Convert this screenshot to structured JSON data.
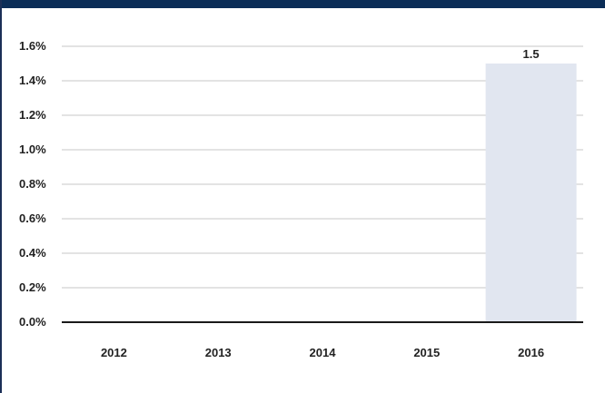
{
  "theme": {
    "header_color": "#0b2d57",
    "border_color": "#1b2f57",
    "bar_color": "#e1e6f0",
    "grid_color": "#c7c7c7",
    "axis_color": "#1a1a1a"
  },
  "chart_data": {
    "type": "bar",
    "title": "",
    "xlabel": "",
    "ylabel": "",
    "categories": [
      "2012",
      "2013",
      "2014",
      "2015",
      "2016"
    ],
    "values": [
      0,
      0,
      0,
      0,
      1.5
    ],
    "data_labels": [
      "",
      "",
      "",
      "",
      "1.5"
    ],
    "ylim": [
      0,
      1.6
    ],
    "y_ticks": [
      0,
      0.2,
      0.4,
      0.6,
      0.8,
      1.0,
      1.2,
      1.4,
      1.6
    ],
    "y_tick_labels": [
      "0.0%",
      "0.2%",
      "0.4%",
      "0.6%",
      "0.8%",
      "1.0%",
      "1.2%",
      "1.4%",
      "1.6%"
    ],
    "grid": true,
    "legend": "none"
  }
}
